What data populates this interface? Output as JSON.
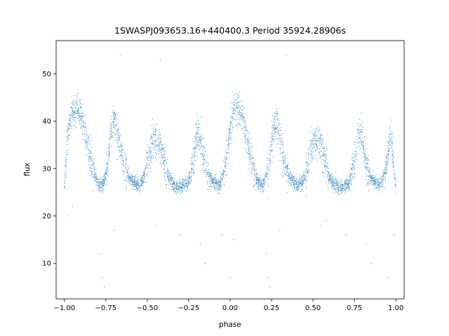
{
  "chart_data": {
    "type": "scatter",
    "title": "1SWASPJ093653.16+440400.3 Period 35924.28906s",
    "xlabel": "phase",
    "ylabel": "flux",
    "xlim": [
      -1.05,
      1.05
    ],
    "ylim": [
      2.5,
      57
    ],
    "x_ticks": [
      -1.0,
      -0.75,
      -0.5,
      -0.25,
      0.0,
      0.25,
      0.5,
      0.75,
      1.0
    ],
    "x_tick_labels": [
      "−1.00",
      "−0.75",
      "−0.50",
      "−0.25",
      "0.00",
      "0.25",
      "0.50",
      "0.75",
      "1.00"
    ],
    "y_ticks": [
      10,
      20,
      30,
      40,
      50
    ],
    "y_tick_labels": [
      "10",
      "20",
      "30",
      "40",
      "50"
    ],
    "grid": false,
    "point_color": "#1f77b4",
    "phase_folded_profile": {
      "x": [
        -1.0,
        -0.98,
        -0.95,
        -0.92,
        -0.89,
        -0.86,
        -0.83,
        -0.8,
        -0.77,
        -0.74,
        -0.72,
        -0.7,
        -0.67,
        -0.64,
        -0.61,
        -0.58,
        -0.55,
        -0.52,
        -0.49,
        -0.46,
        -0.43,
        -0.4,
        -0.37,
        -0.34,
        -0.31,
        -0.28,
        -0.25,
        -0.22,
        -0.2,
        -0.18,
        -0.15,
        -0.12,
        -0.09,
        -0.06,
        -0.03,
        0.0,
        0.02,
        0.05,
        0.08,
        0.11,
        0.14,
        0.17,
        0.2,
        0.23,
        0.26,
        0.28,
        0.3,
        0.33,
        0.36,
        0.39,
        0.42,
        0.45,
        0.48,
        0.51,
        0.54,
        0.57,
        0.6,
        0.63,
        0.66,
        0.69,
        0.72,
        0.75,
        0.78,
        0.8,
        0.82,
        0.85,
        0.88,
        0.91,
        0.94,
        0.97,
        1.0
      ],
      "y": [
        26,
        38,
        42,
        43,
        40,
        35,
        30,
        27,
        26.5,
        30,
        38,
        40,
        36,
        31,
        28,
        27,
        26.5,
        28,
        33,
        36,
        36,
        32,
        28,
        26.5,
        26,
        26.5,
        27,
        32,
        38,
        36,
        31,
        28,
        27,
        26.5,
        30,
        38,
        42,
        43,
        40,
        35,
        30,
        27,
        26.5,
        30,
        38,
        40,
        36,
        31,
        28,
        27,
        26.5,
        28,
        33,
        36,
        36,
        32,
        28,
        26.5,
        26,
        26.5,
        27,
        32,
        38,
        36,
        31,
        28,
        27,
        26.5,
        30,
        38,
        26
      ]
    },
    "outliers": {
      "x": [
        -0.98,
        -0.95,
        -0.78,
        -0.77,
        -0.76,
        -0.7,
        -0.66,
        -0.45,
        -0.42,
        -0.3,
        -0.18,
        -0.15,
        -0.05,
        0.0,
        0.02,
        0.22,
        0.23,
        0.24,
        0.3,
        0.34,
        0.55,
        0.58,
        0.7,
        0.82,
        0.85,
        0.95,
        0.99
      ],
      "y": [
        20,
        22,
        12,
        7,
        5,
        17,
        54,
        18,
        53,
        16,
        14,
        10,
        16,
        7,
        15,
        12,
        7,
        5,
        17,
        54,
        18,
        19,
        16,
        14,
        10,
        7,
        16
      ]
    }
  }
}
